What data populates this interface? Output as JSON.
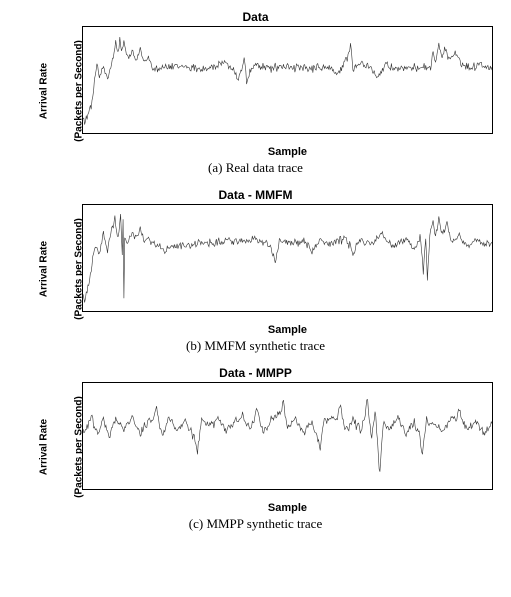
{
  "charts": [
    {
      "id": "a",
      "title": "Data",
      "caption": "(a) Real data trace",
      "type": "line",
      "xlabel": "Sample",
      "ylabel_line1": "Arrival Rate",
      "ylabel_line2": "(Packets per Second)",
      "xlim": [
        0,
        1000
      ],
      "ylim": [
        0,
        12000
      ],
      "xtick_start": 0,
      "xtick_end": 1000,
      "xtick_step": 100,
      "ytick_start": 0,
      "ytick_end": 12000,
      "ytick_step": 2000,
      "line_color": "#333333",
      "background_color": "#ffffff",
      "line_width": 0.6,
      "series": {
        "baseline": 7300,
        "noise_amp": 900,
        "spikes": [
          {
            "x": 5,
            "v": 900
          },
          {
            "x": 10,
            "v": 1400
          },
          {
            "x": 15,
            "v": 2200
          },
          {
            "x": 20,
            "v": 2600
          },
          {
            "x": 25,
            "v": 4400
          },
          {
            "x": 30,
            "v": 6800
          },
          {
            "x": 35,
            "v": 7800
          },
          {
            "x": 40,
            "v": 6200
          },
          {
            "x": 50,
            "v": 7400
          },
          {
            "x": 60,
            "v": 5900
          },
          {
            "x": 70,
            "v": 7900
          },
          {
            "x": 80,
            "v": 10400
          },
          {
            "x": 85,
            "v": 8800
          },
          {
            "x": 90,
            "v": 10800
          },
          {
            "x": 95,
            "v": 9300
          },
          {
            "x": 100,
            "v": 10600
          },
          {
            "x": 110,
            "v": 8500
          },
          {
            "x": 120,
            "v": 9600
          },
          {
            "x": 130,
            "v": 8200
          },
          {
            "x": 140,
            "v": 9800
          },
          {
            "x": 150,
            "v": 8100
          },
          {
            "x": 160,
            "v": 8900
          },
          {
            "x": 170,
            "v": 7400
          },
          {
            "x": 200,
            "v": 7500
          },
          {
            "x": 250,
            "v": 7600
          },
          {
            "x": 300,
            "v": 7200
          },
          {
            "x": 350,
            "v": 8200
          },
          {
            "x": 380,
            "v": 6000
          },
          {
            "x": 395,
            "v": 8600
          },
          {
            "x": 400,
            "v": 5700
          },
          {
            "x": 420,
            "v": 7900
          },
          {
            "x": 450,
            "v": 7400
          },
          {
            "x": 500,
            "v": 7600
          },
          {
            "x": 550,
            "v": 7200
          },
          {
            "x": 600,
            "v": 7500
          },
          {
            "x": 620,
            "v": 6400
          },
          {
            "x": 640,
            "v": 8200
          },
          {
            "x": 655,
            "v": 10300
          },
          {
            "x": 660,
            "v": 7100
          },
          {
            "x": 680,
            "v": 8000
          },
          {
            "x": 700,
            "v": 7500
          },
          {
            "x": 720,
            "v": 6100
          },
          {
            "x": 740,
            "v": 7900
          },
          {
            "x": 760,
            "v": 7300
          },
          {
            "x": 800,
            "v": 7200
          },
          {
            "x": 830,
            "v": 7700
          },
          {
            "x": 850,
            "v": 7300
          },
          {
            "x": 855,
            "v": 9600
          },
          {
            "x": 862,
            "v": 8000
          },
          {
            "x": 870,
            "v": 10100
          },
          {
            "x": 878,
            "v": 8600
          },
          {
            "x": 885,
            "v": 9800
          },
          {
            "x": 900,
            "v": 8600
          },
          {
            "x": 910,
            "v": 9400
          },
          {
            "x": 930,
            "v": 7700
          },
          {
            "x": 950,
            "v": 7500
          },
          {
            "x": 970,
            "v": 8100
          },
          {
            "x": 1000,
            "v": 7400
          }
        ]
      }
    },
    {
      "id": "b",
      "title": "Data - MMFM",
      "caption": "(b) MMFM synthetic trace",
      "type": "line",
      "xlabel": "Sample",
      "ylabel_line1": "Arrival Rate",
      "ylabel_line2": "(Packets per Second)",
      "xlim": [
        0,
        1000
      ],
      "ylim": [
        0,
        12000
      ],
      "xtick_start": 0,
      "xtick_end": 1000,
      "xtick_step": 100,
      "ytick_start": 0,
      "ytick_end": 12000,
      "ytick_step": 2000,
      "line_color": "#333333",
      "background_color": "#ffffff",
      "line_width": 0.6,
      "series": {
        "baseline": 7600,
        "noise_amp": 850,
        "spikes": [
          {
            "x": 5,
            "v": 1000
          },
          {
            "x": 10,
            "v": 1900
          },
          {
            "x": 15,
            "v": 2800
          },
          {
            "x": 20,
            "v": 4200
          },
          {
            "x": 25,
            "v": 6500
          },
          {
            "x": 30,
            "v": 7200
          },
          {
            "x": 40,
            "v": 6400
          },
          {
            "x": 50,
            "v": 8900
          },
          {
            "x": 60,
            "v": 6800
          },
          {
            "x": 70,
            "v": 9400
          },
          {
            "x": 78,
            "v": 10700
          },
          {
            "x": 85,
            "v": 8300
          },
          {
            "x": 92,
            "v": 10900
          },
          {
            "x": 96,
            "v": 6300
          },
          {
            "x": 98,
            "v": 10500
          },
          {
            "x": 100,
            "v": 1600
          },
          {
            "x": 102,
            "v": 8200
          },
          {
            "x": 110,
            "v": 7600
          },
          {
            "x": 120,
            "v": 9100
          },
          {
            "x": 130,
            "v": 8300
          },
          {
            "x": 140,
            "v": 9700
          },
          {
            "x": 150,
            "v": 7900
          },
          {
            "x": 160,
            "v": 8200
          },
          {
            "x": 180,
            "v": 7400
          },
          {
            "x": 200,
            "v": 6600
          },
          {
            "x": 220,
            "v": 7200
          },
          {
            "x": 250,
            "v": 7400
          },
          {
            "x": 300,
            "v": 7700
          },
          {
            "x": 350,
            "v": 8300
          },
          {
            "x": 400,
            "v": 7900
          },
          {
            "x": 420,
            "v": 8400
          },
          {
            "x": 450,
            "v": 7800
          },
          {
            "x": 470,
            "v": 5300
          },
          {
            "x": 480,
            "v": 8000
          },
          {
            "x": 500,
            "v": 7700
          },
          {
            "x": 540,
            "v": 8100
          },
          {
            "x": 560,
            "v": 6600
          },
          {
            "x": 580,
            "v": 8400
          },
          {
            "x": 600,
            "v": 7600
          },
          {
            "x": 640,
            "v": 8500
          },
          {
            "x": 660,
            "v": 6400
          },
          {
            "x": 680,
            "v": 8100
          },
          {
            "x": 700,
            "v": 7600
          },
          {
            "x": 730,
            "v": 8900
          },
          {
            "x": 760,
            "v": 7300
          },
          {
            "x": 790,
            "v": 8200
          },
          {
            "x": 810,
            "v": 6800
          },
          {
            "x": 825,
            "v": 8600
          },
          {
            "x": 832,
            "v": 4200
          },
          {
            "x": 838,
            "v": 8400
          },
          {
            "x": 842,
            "v": 3200
          },
          {
            "x": 848,
            "v": 8800
          },
          {
            "x": 855,
            "v": 10400
          },
          {
            "x": 862,
            "v": 8500
          },
          {
            "x": 870,
            "v": 10800
          },
          {
            "x": 880,
            "v": 8900
          },
          {
            "x": 890,
            "v": 10200
          },
          {
            "x": 900,
            "v": 8100
          },
          {
            "x": 920,
            "v": 8600
          },
          {
            "x": 940,
            "v": 7300
          },
          {
            "x": 960,
            "v": 8100
          },
          {
            "x": 980,
            "v": 7500
          },
          {
            "x": 1000,
            "v": 7800
          }
        ]
      }
    },
    {
      "id": "c",
      "title": "Data - MMPP",
      "caption": "(c) MMPP synthetic trace",
      "type": "line",
      "xlabel": "Sample",
      "ylabel_line1": "Arrival Rate",
      "ylabel_line2": "(Packets per Second)",
      "xlim": [
        0,
        1000
      ],
      "ylim": [
        0,
        12000
      ],
      "xtick_start": 0,
      "xtick_end": 1000,
      "xtick_step": 100,
      "ytick_start": 0,
      "ytick_end": 12000,
      "ytick_step": 2000,
      "line_color": "#333333",
      "background_color": "#ffffff",
      "line_width": 0.6,
      "series": {
        "baseline": 7000,
        "noise_amp": 1000,
        "spikes": [
          {
            "x": 5,
            "v": 6800
          },
          {
            "x": 20,
            "v": 8400
          },
          {
            "x": 35,
            "v": 6300
          },
          {
            "x": 50,
            "v": 7900
          },
          {
            "x": 65,
            "v": 5800
          },
          {
            "x": 80,
            "v": 8200
          },
          {
            "x": 100,
            "v": 6700
          },
          {
            "x": 120,
            "v": 8600
          },
          {
            "x": 140,
            "v": 6200
          },
          {
            "x": 160,
            "v": 7900
          },
          {
            "x": 180,
            "v": 9100
          },
          {
            "x": 195,
            "v": 6000
          },
          {
            "x": 210,
            "v": 8300
          },
          {
            "x": 230,
            "v": 6600
          },
          {
            "x": 250,
            "v": 7700
          },
          {
            "x": 280,
            "v": 4000
          },
          {
            "x": 290,
            "v": 8100
          },
          {
            "x": 310,
            "v": 7200
          },
          {
            "x": 330,
            "v": 8400
          },
          {
            "x": 350,
            "v": 6500
          },
          {
            "x": 370,
            "v": 7800
          },
          {
            "x": 390,
            "v": 8600
          },
          {
            "x": 410,
            "v": 6700
          },
          {
            "x": 425,
            "v": 9400
          },
          {
            "x": 440,
            "v": 6300
          },
          {
            "x": 460,
            "v": 8100
          },
          {
            "x": 490,
            "v": 10100
          },
          {
            "x": 500,
            "v": 7000
          },
          {
            "x": 520,
            "v": 8200
          },
          {
            "x": 540,
            "v": 6200
          },
          {
            "x": 560,
            "v": 7600
          },
          {
            "x": 580,
            "v": 4300
          },
          {
            "x": 590,
            "v": 7800
          },
          {
            "x": 610,
            "v": 8200
          },
          {
            "x": 630,
            "v": 9600
          },
          {
            "x": 640,
            "v": 6500
          },
          {
            "x": 660,
            "v": 7900
          },
          {
            "x": 680,
            "v": 6400
          },
          {
            "x": 695,
            "v": 10600
          },
          {
            "x": 705,
            "v": 5600
          },
          {
            "x": 715,
            "v": 8900
          },
          {
            "x": 725,
            "v": 1100
          },
          {
            "x": 735,
            "v": 7600
          },
          {
            "x": 750,
            "v": 6700
          },
          {
            "x": 770,
            "v": 8300
          },
          {
            "x": 790,
            "v": 6000
          },
          {
            "x": 810,
            "v": 7800
          },
          {
            "x": 830,
            "v": 3700
          },
          {
            "x": 840,
            "v": 8000
          },
          {
            "x": 860,
            "v": 7400
          },
          {
            "x": 880,
            "v": 6500
          },
          {
            "x": 900,
            "v": 8000
          },
          {
            "x": 920,
            "v": 9100
          },
          {
            "x": 940,
            "v": 6600
          },
          {
            "x": 960,
            "v": 7700
          },
          {
            "x": 980,
            "v": 6200
          },
          {
            "x": 1000,
            "v": 7500
          }
        ]
      }
    }
  ]
}
